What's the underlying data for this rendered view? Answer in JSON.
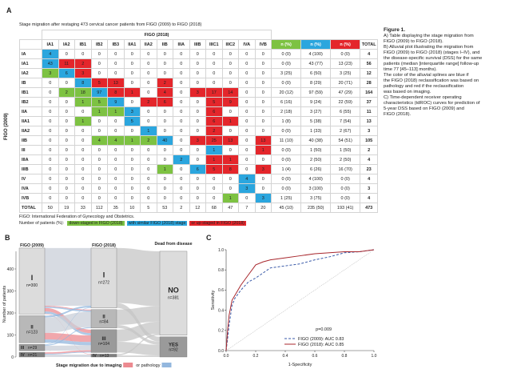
{
  "panel_a": {
    "label": "A",
    "title": "Stage migration after restaging 473 cervical cancer patients from FIGO (2009) to FIGO (2018)",
    "column_group": "FIGO (2018)",
    "row_group": "FIGO (2009)",
    "stage_columns": [
      "IA1",
      "IA2",
      "IB1",
      "IB2",
      "IB3",
      "IIA1",
      "IIA2",
      "IIB",
      "IIIA",
      "IIIB",
      "IIIC1",
      "IIIC2",
      "IVA",
      "IVB"
    ],
    "summary_columns": [
      {
        "name": "n (%)",
        "color": "#7dc242"
      },
      {
        "name": "n (%)",
        "color": "#2ba6de"
      },
      {
        "name": "n (%)",
        "color": "#e4262b"
      }
    ],
    "total_column": "TOTAL",
    "rows": [
      {
        "label": "IA",
        "cells": [
          4,
          0,
          0,
          0,
          0,
          0,
          0,
          0,
          0,
          0,
          0,
          0,
          0,
          0
        ],
        "cell_colors": [
          "#2ba6de",
          null,
          null,
          null,
          null,
          null,
          null,
          null,
          null,
          null,
          null,
          null,
          null,
          null
        ],
        "summary": [
          "0 (0)",
          "4 (100)",
          "0 (0)"
        ],
        "total": 4
      },
      {
        "label": "IA1",
        "cells": [
          43,
          11,
          2,
          0,
          0,
          0,
          0,
          0,
          0,
          0,
          0,
          0,
          0,
          0
        ],
        "cell_colors": [
          "#2ba6de",
          "#e4262b",
          "#e4262b",
          null,
          null,
          null,
          null,
          null,
          null,
          null,
          null,
          null,
          null,
          null
        ],
        "summary": [
          "0 (0)",
          "43 (77)",
          "13 (23)"
        ],
        "total": 56
      },
      {
        "label": "IA2",
        "cells": [
          3,
          6,
          3,
          0,
          0,
          0,
          0,
          0,
          0,
          0,
          0,
          0,
          0,
          0
        ],
        "cell_colors": [
          "#7dc242",
          "#2ba6de",
          "#e4262b",
          null,
          null,
          null,
          null,
          null,
          null,
          null,
          null,
          null,
          null,
          null
        ],
        "summary": [
          "3 (25)",
          "6 (50)",
          "3 (25)"
        ],
        "total": 12
      },
      {
        "label": "IB",
        "cells": [
          0,
          0,
          8,
          5,
          13,
          0,
          0,
          2,
          0,
          0,
          0,
          0,
          0,
          0
        ],
        "cell_colors": [
          null,
          null,
          "#2ba6de",
          "#e4262b",
          "#e4262b",
          null,
          null,
          "#e4262b",
          null,
          null,
          null,
          null,
          null,
          null
        ],
        "summary": [
          "0 (0)",
          "8 (29)",
          "20 (71)"
        ],
        "total": 28
      },
      {
        "label": "IB1",
        "cells": [
          0,
          2,
          18,
          97,
          8,
          1,
          0,
          4,
          0,
          3,
          17,
          14,
          0,
          0
        ],
        "cell_colors": [
          null,
          "#7dc242",
          "#7dc242",
          "#2ba6de",
          "#e4262b",
          "#e4262b",
          null,
          "#e4262b",
          null,
          "#e4262b",
          "#e4262b",
          "#e4262b",
          null,
          null
        ],
        "summary": [
          "20 (12)",
          "97 (59)",
          "47 (29)"
        ],
        "total": 164
      },
      {
        "label": "IB2",
        "cells": [
          0,
          0,
          1,
          5,
          9,
          0,
          2,
          6,
          0,
          0,
          5,
          9,
          0,
          0
        ],
        "cell_colors": [
          null,
          null,
          "#7dc242",
          "#7dc242",
          "#2ba6de",
          null,
          "#e4262b",
          "#e4262b",
          null,
          null,
          "#e4262b",
          "#e4262b",
          null,
          null
        ],
        "summary": [
          "6 (16)",
          "9 (24)",
          "22 (59)"
        ],
        "total": 37
      },
      {
        "label": "IIA",
        "cells": [
          0,
          0,
          0,
          1,
          1,
          3,
          0,
          0,
          0,
          0,
          6,
          0,
          0,
          0
        ],
        "cell_colors": [
          null,
          null,
          null,
          "#7dc242",
          "#7dc242",
          "#2ba6de",
          null,
          null,
          null,
          null,
          "#e4262b",
          null,
          null,
          null
        ],
        "summary": [
          "2 (18)",
          "3 (27)",
          "6 (55)"
        ],
        "total": 11
      },
      {
        "label": "IIA1",
        "cells": [
          0,
          0,
          1,
          0,
          0,
          5,
          0,
          0,
          0,
          0,
          6,
          1,
          0,
          0
        ],
        "cell_colors": [
          null,
          null,
          "#7dc242",
          null,
          null,
          "#2ba6de",
          null,
          null,
          null,
          null,
          "#e4262b",
          "#e4262b",
          null,
          null
        ],
        "summary": [
          "1 (8)",
          "5 (38)",
          "7 (54)"
        ],
        "total": 13
      },
      {
        "label": "IIA2",
        "cells": [
          0,
          0,
          0,
          0,
          0,
          0,
          1,
          0,
          0,
          0,
          2,
          0,
          0,
          0
        ],
        "cell_colors": [
          null,
          null,
          null,
          null,
          null,
          null,
          "#2ba6de",
          null,
          null,
          null,
          "#e4262b",
          null,
          null,
          null
        ],
        "summary": [
          "0 (0)",
          "1 (33)",
          "2 (67)"
        ],
        "total": 3
      },
      {
        "label": "IIB",
        "cells": [
          0,
          0,
          0,
          4,
          4,
          1,
          2,
          40,
          0,
          3,
          25,
          13,
          0,
          13
        ],
        "cell_colors": [
          null,
          null,
          null,
          "#7dc242",
          "#7dc242",
          "#7dc242",
          "#7dc242",
          "#2ba6de",
          null,
          "#e4262b",
          "#e4262b",
          "#e4262b",
          null,
          "#e4262b"
        ],
        "summary": [
          "11 (10)",
          "40 (38)",
          "54 (51)"
        ],
        "total": 105
      },
      {
        "label": "III",
        "cells": [
          0,
          0,
          0,
          0,
          0,
          0,
          0,
          0,
          0,
          0,
          1,
          0,
          0,
          1
        ],
        "cell_colors": [
          null,
          null,
          null,
          null,
          null,
          null,
          null,
          null,
          null,
          null,
          "#2ba6de",
          null,
          null,
          "#e4262b"
        ],
        "summary": [
          "0 (0)",
          "1 (50)",
          "1 (50)"
        ],
        "total": 2
      },
      {
        "label": "IIIA",
        "cells": [
          0,
          0,
          0,
          0,
          0,
          0,
          0,
          0,
          2,
          0,
          1,
          1,
          0,
          0
        ],
        "cell_colors": [
          null,
          null,
          null,
          null,
          null,
          null,
          null,
          null,
          "#2ba6de",
          null,
          "#e4262b",
          "#e4262b",
          null,
          null
        ],
        "summary": [
          "0 (0)",
          "2 (50)",
          "2 (50)"
        ],
        "total": 4
      },
      {
        "label": "IIIB",
        "cells": [
          0,
          0,
          0,
          0,
          0,
          0,
          0,
          1,
          0,
          6,
          5,
          8,
          0,
          3
        ],
        "cell_colors": [
          null,
          null,
          null,
          null,
          null,
          null,
          null,
          "#7dc242",
          null,
          "#2ba6de",
          "#e4262b",
          "#e4262b",
          null,
          "#e4262b"
        ],
        "summary": [
          "1 (4)",
          "6 (26)",
          "16 (70)"
        ],
        "total": 23
      },
      {
        "label": "IV",
        "cells": [
          0,
          0,
          0,
          0,
          0,
          0,
          0,
          0,
          0,
          0,
          0,
          0,
          4,
          0
        ],
        "cell_colors": [
          null,
          null,
          null,
          null,
          null,
          null,
          null,
          null,
          null,
          null,
          null,
          null,
          "#2ba6de",
          null
        ],
        "summary": [
          "0 (0)",
          "4 (100)",
          "0 (0)"
        ],
        "total": 4
      },
      {
        "label": "IVA",
        "cells": [
          0,
          0,
          0,
          0,
          0,
          0,
          0,
          0,
          0,
          0,
          0,
          0,
          3,
          0
        ],
        "cell_colors": [
          null,
          null,
          null,
          null,
          null,
          null,
          null,
          null,
          null,
          null,
          null,
          null,
          "#2ba6de",
          null
        ],
        "summary": [
          "0 (0)",
          "3 (100)",
          "0 (0)"
        ],
        "total": 3
      },
      {
        "label": "IVB",
        "cells": [
          0,
          0,
          0,
          0,
          0,
          0,
          0,
          0,
          0,
          0,
          0,
          1,
          0,
          3
        ],
        "cell_colors": [
          null,
          null,
          null,
          null,
          null,
          null,
          null,
          null,
          null,
          null,
          null,
          "#7dc242",
          null,
          "#2ba6de"
        ],
        "summary": [
          "1 (25)",
          "3 (75)",
          "0 (0)"
        ],
        "total": 4
      },
      {
        "label": "TOTAL",
        "cells": [
          50,
          19,
          33,
          112,
          35,
          10,
          5,
          53,
          2,
          12,
          68,
          47,
          7,
          20
        ],
        "cell_colors": [
          null,
          null,
          null,
          null,
          null,
          null,
          null,
          null,
          null,
          null,
          null,
          null,
          null,
          null
        ],
        "summary": [
          "45 (10)",
          "235 (50)",
          "193 (41)"
        ],
        "total": 473
      }
    ],
    "footnote": "FIGO: International Federation of Gynecology and Obstetrics.",
    "legend_lead": "Number of patients (%):",
    "legend": [
      {
        "text": "down-staged in FIGO (2018)",
        "color": "#7dc242"
      },
      {
        "text": "with similar FIGO (2018) stage",
        "color": "#2ba6de"
      },
      {
        "text": "or up-staged in FIGO (2018)",
        "color": "#e4262b"
      }
    ]
  },
  "chart_data": [
    {
      "type": "alluvial",
      "label": "B",
      "axis_titles": [
        "FIGO (2009)",
        "FIGO (2018)",
        "Dead from disease"
      ],
      "stages": [
        {
          "categories": [
            "I",
            "II",
            "III",
            "IV"
          ],
          "values": [
            300,
            123,
            29,
            21
          ],
          "value_labels": [
            "n=300",
            "n=123",
            "n=29",
            "n=21"
          ],
          "colors": [
            "#dcdcdc",
            "#b8b8b8",
            "#9a9a9a",
            "#808080"
          ]
        },
        {
          "categories": [
            "I",
            "II",
            "III",
            "IV"
          ],
          "values": [
            272,
            84,
            104,
            13
          ],
          "value_labels": [
            "n=272",
            "n=84",
            "n=104",
            "n=13"
          ],
          "colors": [
            "#dcdcdc",
            "#b8b8b8",
            "#9a9a9a",
            "#808080"
          ]
        },
        {
          "categories": [
            "NO",
            "YES"
          ],
          "values": [
            381,
            92
          ],
          "value_labels": [
            "n=381",
            "n=92"
          ],
          "colors": [
            "#dcdcdc",
            "#9a9a9a"
          ]
        }
      ],
      "unchanged": {
        "color": "#c9cfd8",
        "values": [
          [
            262,
            0,
            0,
            0
          ],
          [
            0,
            70,
            0,
            0
          ],
          [
            0,
            0,
            23,
            0
          ],
          [
            0,
            0,
            0,
            11
          ]
        ]
      },
      "series": [
        {
          "name": "Stage migration due to imaging",
          "color": "#ec8a90",
          "values": [
            [
              0,
              4,
              16,
              2
            ],
            [
              0,
              0,
              30,
              0
            ],
            [
              0,
              0,
              0,
              0
            ],
            [
              0,
              0,
              6,
              0
            ]
          ]
        },
        {
          "name": "or pathology",
          "color": "#93b7de",
          "values": [
            [
              0,
              6,
              10,
              0
            ],
            [
              8,
              0,
              15,
              0
            ],
            [
              2,
              4,
              0,
              0
            ],
            [
              0,
              0,
              4,
              0
            ]
          ]
        }
      ],
      "outcome_flows": {
        "color": "#c6c6c6",
        "values": [
          [
            250,
            22
          ],
          [
            70,
            14
          ],
          [
            55,
            49
          ],
          [
            6,
            7
          ]
        ]
      },
      "ylabel": "Number of patients",
      "ylim": [
        0,
        480
      ],
      "yticks": [
        0,
        100,
        200,
        300,
        400
      ]
    },
    {
      "type": "line",
      "label": "C",
      "xlabel": "1-Specificity",
      "ylabel": "Sensitivity",
      "xlim": [
        0,
        1
      ],
      "ylim": [
        0,
        1
      ],
      "xticks": [
        {
          "value": 0,
          "label": "0.0"
        },
        0.2,
        0.4,
        0.6,
        0.8,
        {
          "value": 1,
          "label": "1.0"
        }
      ],
      "yticks": [
        {
          "value": 0,
          "label": "0.0"
        },
        0.2,
        0.4,
        0.6,
        0.8,
        {
          "value": 1,
          "label": "1.0"
        }
      ],
      "annotation": "p=0.009",
      "reference_line": true,
      "legend": "lower right",
      "series": [
        {
          "name": "FIGO (2009): AUC 0.83",
          "color": "#3a5aa8",
          "dash": true,
          "x": [
            0,
            0.01,
            0.02,
            0.04,
            0.06,
            0.1,
            0.15,
            0.2,
            0.3,
            0.4,
            0.5,
            0.6,
            0.7,
            0.8,
            0.9,
            1
          ],
          "values": [
            0,
            0.12,
            0.25,
            0.45,
            0.52,
            0.6,
            0.68,
            0.72,
            0.82,
            0.84,
            0.86,
            0.9,
            0.93,
            0.97,
            0.98,
            1
          ]
        },
        {
          "name": "FIGO (2018): AUC 0.85",
          "color": "#a8272d",
          "dash": false,
          "x": [
            0,
            0.01,
            0.02,
            0.04,
            0.06,
            0.1,
            0.15,
            0.2,
            0.25,
            0.3,
            0.4,
            0.5,
            0.6,
            0.7,
            0.8,
            0.9,
            1
          ],
          "values": [
            0,
            0.2,
            0.35,
            0.5,
            0.55,
            0.65,
            0.75,
            0.85,
            0.88,
            0.9,
            0.92,
            0.94,
            0.96,
            0.97,
            0.98,
            0.98,
            1
          ]
        }
      ]
    }
  ],
  "caption": {
    "title": "Figure 1.",
    "lines": [
      "A) Table displaying the stage migration from",
      "FIGO (2009) to FIGO (2018).",
      "B) Alluvial plot illustrating the migration from",
      "FIGO (2009) to FIGO (2018) (stages I–IV), and",
      "the disease-specific survival (DSS) for the same",
      "patients (median [interquartile range] follow-up",
      "time 77 [45–113] months).",
      "The color of the alluvial splines are blue if",
      "the FIGO (2018) reclassification was based on",
      "pathology and red if the reclassification",
      "was based on imaging.",
      "C) Time-dependent receiver operating",
      "characteristics (tdROC) curves for prediction of",
      "5-year DSS based on FIGO (2009) and",
      "FIGO (2018)."
    ]
  }
}
